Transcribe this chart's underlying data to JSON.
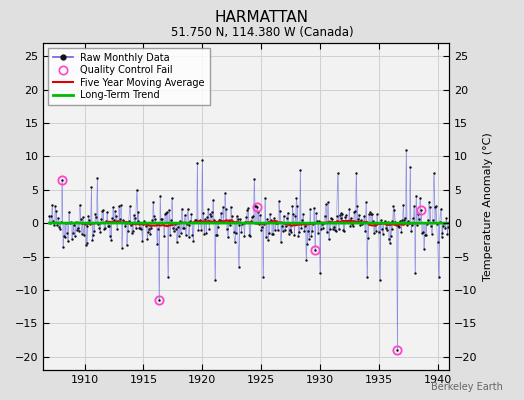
{
  "title": "HARMATTAN",
  "subtitle": "51.750 N, 114.380 W (Canada)",
  "ylabel": "Temperature Anomaly (°C)",
  "watermark": "Berkeley Earth",
  "ylim": [
    -22,
    27
  ],
  "yticks": [
    -20,
    -15,
    -10,
    -5,
    0,
    5,
    10,
    15,
    20,
    25
  ],
  "xlim": [
    1906.5,
    1941.0
  ],
  "xticks": [
    1910,
    1915,
    1920,
    1925,
    1930,
    1935,
    1940
  ],
  "bg_color": "#e0e0e0",
  "plot_bg": "#f2f2f2",
  "grid_color": "#d0d0d0",
  "line_color": "#6666dd",
  "line_alpha": 0.6,
  "dot_color": "#111111",
  "ma_color": "#dd0000",
  "trend_color": "#00bb00",
  "qc_color": "#ff44cc",
  "start_year": 1907,
  "end_year": 1940,
  "seed": 42,
  "title_fontsize": 11,
  "subtitle_fontsize": 8.5,
  "tick_fontsize": 8,
  "ylabel_fontsize": 8,
  "legend_fontsize": 7,
  "watermark_fontsize": 7
}
